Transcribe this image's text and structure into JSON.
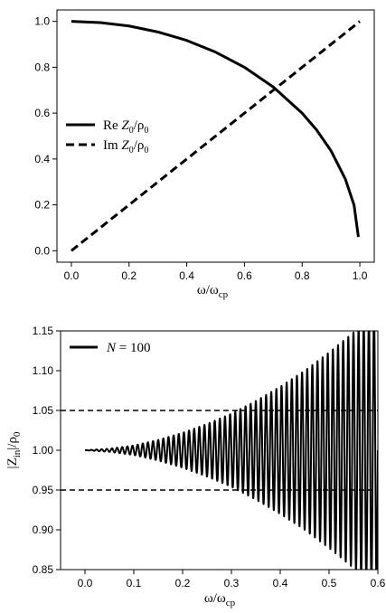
{
  "chart_data": [
    {
      "type": "line",
      "xlabel": "ω/ω",
      "xlabel_sub": "cp",
      "ylabel": "",
      "xlim": [
        -0.05,
        1.05
      ],
      "ylim": [
        -0.05,
        1.05
      ],
      "xticks": [
        "0.0",
        "0.2",
        "0.4",
        "0.6",
        "0.8",
        "1.0"
      ],
      "xtick_values": [
        0,
        0.2,
        0.4,
        0.6,
        0.8,
        1.0
      ],
      "yticks": [
        "0.0",
        "0.2",
        "0.4",
        "0.6",
        "0.8",
        "1.0"
      ],
      "ytick_values": [
        0,
        0.2,
        0.4,
        0.6,
        0.8,
        1.0
      ],
      "legend_position": "center-left",
      "grid": false,
      "series": [
        {
          "name": "Re Z0/ρ0",
          "legend_parts": {
            "prefix": "Re ",
            "z": "Z",
            "z_sub": "0",
            "rho": "/ρ",
            "rho_sub": "0"
          },
          "style": "solid",
          "x": [
            0.0,
            0.1,
            0.2,
            0.3,
            0.4,
            0.5,
            0.6,
            0.7,
            0.8,
            0.85,
            0.9,
            0.95,
            0.98,
            0.995
          ],
          "y": [
            1.0,
            0.995,
            0.98,
            0.954,
            0.917,
            0.866,
            0.8,
            0.714,
            0.6,
            0.527,
            0.436,
            0.312,
            0.199,
            0.06
          ]
        },
        {
          "name": "Im Z0/ρ0",
          "legend_parts": {
            "prefix": "Im ",
            "z": "Z",
            "z_sub": "0",
            "rho": "/ρ",
            "rho_sub": "0"
          },
          "style": "dashed",
          "x": [
            0.0,
            1.0
          ],
          "y": [
            0.0,
            1.0
          ]
        }
      ]
    },
    {
      "type": "line",
      "xlabel": "ω/ω",
      "xlabel_sub": "cp",
      "ylabel": "|Z",
      "ylabel_sub": "in",
      "ylabel_rest": "|/ρ",
      "ylabel_sub2": "0",
      "xlim": [
        -0.05,
        0.6
      ],
      "ylim": [
        0.85,
        1.15
      ],
      "xticks": [
        "0.0",
        "0.1",
        "0.2",
        "0.3",
        "0.4",
        "0.5",
        "0.6"
      ],
      "xtick_values": [
        0,
        0.1,
        0.2,
        0.3,
        0.4,
        0.5,
        0.6
      ],
      "yticks": [
        "0.85",
        "0.90",
        "0.95",
        "1.00",
        "1.05",
        "1.10",
        "1.15"
      ],
      "ytick_values": [
        0.85,
        0.9,
        0.95,
        1.0,
        1.05,
        1.1,
        1.15
      ],
      "legend_position": "top-left",
      "grid": false,
      "series": [
        {
          "name": "N = 100",
          "legend_parts": {
            "n": "N",
            "rest": " = 100"
          },
          "style": "solid",
          "oscillation": {
            "x_start": 0.0,
            "x_end": 0.6,
            "center": 1.0,
            "cycles": 57,
            "envelope_x": [
              0.0,
              0.05,
              0.1,
              0.15,
              0.2,
              0.25,
              0.3,
              0.35,
              0.4,
              0.45,
              0.5,
              0.55,
              0.6
            ],
            "envelope_amp": [
              0.0,
              0.002,
              0.006,
              0.013,
              0.022,
              0.033,
              0.046,
              0.062,
              0.08,
              0.1,
              0.123,
              0.148,
              0.175
            ]
          }
        },
        {
          "name": "",
          "style": "dashed",
          "hline": 1.05
        },
        {
          "name": "",
          "style": "dashed",
          "hline": 0.95
        }
      ]
    }
  ]
}
